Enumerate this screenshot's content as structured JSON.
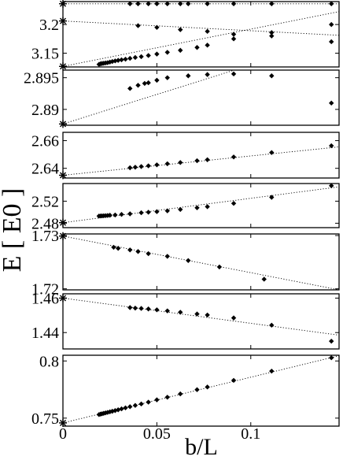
{
  "chart_data": {
    "type": "scatter",
    "ylabel": "E  [ E0 ]",
    "xlabel": "b/L",
    "xlim": [
      0,
      0.147
    ],
    "x_ticks": [
      "0",
      "0.05",
      "0.1"
    ],
    "x_tick_values": [
      0,
      0.05,
      0.1
    ],
    "grid": false,
    "legend": "none",
    "panels": [
      {
        "ylim": [
          3.126,
          3.24
        ],
        "y_ticks": [
          "3.2",
          "3.15"
        ],
        "y_tick_values": [
          3.2,
          3.15
        ],
        "series": [
          {
            "marker": "diamond",
            "points": [
              [
                0.0357,
                3.2362
              ],
              [
                0.04,
                3.2362
              ],
              [
                0.0455,
                3.2362
              ],
              [
                0.05,
                3.2362
              ],
              [
                0.0556,
                3.2362
              ],
              [
                0.0625,
                3.2362
              ],
              [
                0.0667,
                3.2362
              ],
              [
                0.0769,
                3.2362
              ],
              [
                0.0909,
                3.2362
              ],
              [
                0.1111,
                3.2362
              ],
              [
                0.1429,
                3.2362
              ]
            ]
          },
          {
            "marker": "diamond",
            "points": [
              [
                0.04,
                3.198
              ],
              [
                0.05,
                3.195
              ],
              [
                0.0625,
                3.191
              ],
              [
                0.0769,
                3.188
              ],
              [
                0.0909,
                3.183
              ],
              [
                0.1111,
                3.18
              ],
              [
                0.1429,
                3.17
              ]
            ]
          },
          {
            "marker": "diamond",
            "points": [
              [
                0.0192,
                3.1305
              ],
              [
                0.02,
                3.1315
              ],
              [
                0.0208,
                3.132
              ],
              [
                0.0217,
                3.1325
              ],
              [
                0.0227,
                3.133
              ],
              [
                0.0238,
                3.1335
              ],
              [
                0.025,
                3.1345
              ],
              [
                0.0263,
                3.1355
              ],
              [
                0.0278,
                3.1365
              ],
              [
                0.0294,
                3.1375
              ],
              [
                0.0312,
                3.1385
              ],
              [
                0.0333,
                3.1395
              ],
              [
                0.0357,
                3.141
              ],
              [
                0.0385,
                3.1425
              ],
              [
                0.0417,
                3.144
              ],
              [
                0.0455,
                3.146
              ],
              [
                0.05,
                3.1485
              ],
              [
                0.0556,
                3.1515
              ],
              [
                0.0625,
                3.155
              ],
              [
                0.0714,
                3.16
              ],
              [
                0.0769,
                3.164
              ],
              [
                0.0909,
                3.175
              ],
              [
                0.1111,
                3.186
              ],
              [
                0.1429,
                3.2
              ]
            ]
          }
        ],
        "fit_lines": [
          [
            3.2362,
            3.2362
          ],
          [
            3.2062,
            3.1812
          ],
          [
            3.127,
            3.2225
          ]
        ],
        "extrapolated": [
          3.2362,
          3.2062,
          3.127
        ]
      },
      {
        "ylim": [
          2.8875,
          2.8962
        ],
        "y_ticks": [
          "2.895",
          "2.89"
        ],
        "y_tick_values": [
          2.895,
          2.89
        ],
        "series": [
          {
            "marker": "diamond",
            "points": [
              [
                0.0357,
                2.8933
              ],
              [
                0.04,
                2.8938
              ],
              [
                0.0435,
                2.8941
              ],
              [
                0.0455,
                2.8942
              ],
              [
                0.05,
                2.8946
              ],
              [
                0.0556,
                2.895
              ],
              [
                0.0667,
                2.8953
              ],
              [
                0.0769,
                2.8955
              ],
              [
                0.0909,
                2.8956
              ],
              [
                0.1111,
                2.8953
              ],
              [
                0.1429,
                2.891
              ]
            ]
          }
        ],
        "fit_lines": [
          [
            2.8877,
            2.9014
          ]
        ],
        "extrapolated": [
          2.8877
        ]
      },
      {
        "ylim": [
          2.633,
          2.666
        ],
        "y_ticks": [
          "2.66",
          "2.64"
        ],
        "y_tick_values": [
          2.66,
          2.64
        ],
        "series": [
          {
            "marker": "diamond",
            "points": [
              [
                0.0357,
                2.6404
              ],
              [
                0.0385,
                2.6408
              ],
              [
                0.0417,
                2.6413
              ],
              [
                0.0455,
                2.6418
              ],
              [
                0.05,
                2.6425
              ],
              [
                0.0556,
                2.6433
              ],
              [
                0.0625,
                2.6442
              ],
              [
                0.0714,
                2.6455
              ],
              [
                0.0769,
                2.6462
              ],
              [
                0.0909,
                2.6482
              ],
              [
                0.1111,
                2.6514
              ],
              [
                0.1429,
                2.6563
              ]
            ]
          }
        ],
        "fit_lines": [
          [
            2.635,
            2.6555
          ]
        ],
        "extrapolated": [
          2.635
        ]
      },
      {
        "ylim": [
          2.472,
          2.552
        ],
        "y_ticks": [
          "2.52",
          "2.48"
        ],
        "y_tick_values": [
          2.52,
          2.48
        ],
        "series": [
          {
            "marker": "diamond",
            "points": [
              [
                0.0192,
                2.493
              ],
              [
                0.02,
                2.4932
              ],
              [
                0.0208,
                2.4933
              ],
              [
                0.0217,
                2.4935
              ],
              [
                0.0227,
                2.4937
              ],
              [
                0.0238,
                2.494
              ],
              [
                0.025,
                2.4945
              ],
              [
                0.0278,
                2.495
              ],
              [
                0.0312,
                2.496
              ],
              [
                0.0357,
                2.497
              ],
              [
                0.0417,
                2.499
              ],
              [
                0.0455,
                2.5
              ],
              [
                0.05,
                2.501
              ],
              [
                0.0556,
                2.5025
              ],
              [
                0.0625,
                2.505
              ],
              [
                0.0714,
                2.508
              ],
              [
                0.0769,
                2.51
              ],
              [
                0.0909,
                2.516
              ],
              [
                0.1111,
                2.527
              ],
              [
                0.1429,
                2.548
              ]
            ]
          }
        ],
        "fit_lines": [
          [
            2.481,
            2.546
          ]
        ],
        "extrapolated": [
          2.481
        ]
      },
      {
        "ylim": [
          1.7198,
          1.7303
        ],
        "y_ticks": [
          "1.73",
          "1.72"
        ],
        "y_tick_values": [
          1.73,
          1.72
        ],
        "series": [
          {
            "marker": "diamond",
            "points": [
              [
                0.027,
                1.7278
              ],
              [
                0.0294,
                1.7276
              ],
              [
                0.0357,
                1.7273
              ],
              [
                0.04,
                1.727
              ],
              [
                0.0455,
                1.7266
              ],
              [
                0.0556,
                1.7261
              ],
              [
                0.0667,
                1.7253
              ],
              [
                0.0833,
                1.7241
              ],
              [
                0.1071,
                1.7218
              ]
            ]
          }
        ],
        "fit_lines": [
          [
            1.7299,
            1.7198
          ]
        ],
        "extrapolated": [
          1.7299
        ]
      },
      {
        "ylim": [
          1.4305,
          1.4625
        ],
        "y_ticks": [
          "1.46",
          "1.44"
        ],
        "y_tick_values": [
          1.46,
          1.44
        ],
        "series": [
          {
            "marker": "diamond",
            "points": [
              [
                0.0357,
                1.4545
              ],
              [
                0.0385,
                1.4542
              ],
              [
                0.0417,
                1.454
              ],
              [
                0.0455,
                1.4537
              ],
              [
                0.05,
                1.4532
              ],
              [
                0.0556,
                1.4526
              ],
              [
                0.0625,
                1.4518
              ],
              [
                0.0714,
                1.4508
              ],
              [
                0.0769,
                1.4502
              ],
              [
                0.0909,
                1.4485
              ],
              [
                0.1111,
                1.4443
              ],
              [
                0.1429,
                1.435
              ]
            ]
          }
        ],
        "fit_lines": [
          [
            1.46,
            1.4385
          ]
        ],
        "extrapolated": [
          1.46
        ]
      },
      {
        "ylim": [
          0.743,
          0.805
        ],
        "y_ticks": [
          "0.8",
          "0.75"
        ],
        "y_tick_values": [
          0.8,
          0.75
        ],
        "series": [
          {
            "marker": "diamond",
            "points": [
              [
                0.0192,
                0.7531
              ],
              [
                0.02,
                0.7535
              ],
              [
                0.0208,
                0.7538
              ],
              [
                0.0217,
                0.7542
              ],
              [
                0.0227,
                0.7546
              ],
              [
                0.0238,
                0.755
              ],
              [
                0.025,
                0.7555
              ],
              [
                0.0263,
                0.756
              ],
              [
                0.0278,
                0.7566
              ],
              [
                0.0294,
                0.7573
              ],
              [
                0.0312,
                0.7581
              ],
              [
                0.0333,
                0.759
              ],
              [
                0.0357,
                0.76
              ],
              [
                0.0385,
                0.7611
              ],
              [
                0.0417,
                0.7624
              ],
              [
                0.0455,
                0.764
              ],
              [
                0.05,
                0.766
              ],
              [
                0.0556,
                0.7683
              ],
              [
                0.0625,
                0.7712
              ],
              [
                0.0714,
                0.7749
              ],
              [
                0.0769,
                0.7772
              ],
              [
                0.0909,
                0.783
              ],
              [
                0.1111,
                0.7911
              ],
              [
                0.1429,
                0.8028
              ]
            ]
          }
        ],
        "fit_lines": [
          [
            0.7458,
            0.8046
          ]
        ],
        "extrapolated": [
          0.7458
        ]
      }
    ]
  }
}
